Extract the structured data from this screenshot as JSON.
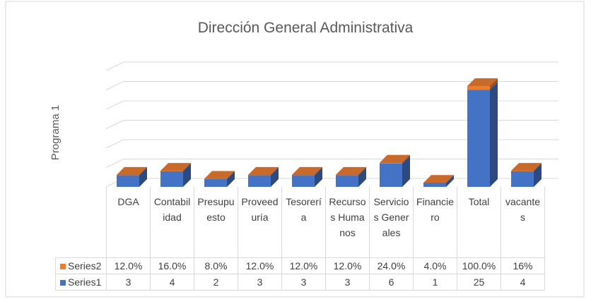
{
  "chart_data": {
    "type": "bar3d",
    "title": "Dirección General Administrativa",
    "y_label": "Programa 1",
    "categories": [
      "DGA",
      "Contabilidad",
      "Presupuesto",
      "Proveeduría",
      "Tesorería",
      "Recursos Humanos",
      "Servicios Generales",
      "Financiero",
      "Total",
      "vacantes"
    ],
    "series": [
      {
        "name": "Series1",
        "color": "#4472c4",
        "values": [
          3,
          4,
          2,
          3,
          3,
          3,
          6,
          1,
          25,
          4
        ]
      },
      {
        "name": "Series2",
        "color": "#ed7d31",
        "values": [
          0.12,
          0.16,
          0.08,
          0.12,
          0.12,
          0.12,
          0.24,
          0.04,
          1,
          0.16
        ],
        "value_labels": [
          "12.0%",
          "16.0%",
          "8.0%",
          "12.0%",
          "12.0%",
          "12.0%",
          "24.0%",
          "4.0%",
          "100.0%",
          "16%"
        ]
      }
    ],
    "ylim": [
      0,
      30
    ],
    "yticks": [
      0,
      5,
      10,
      15,
      20,
      25,
      30
    ],
    "grid": true,
    "stacked": true
  }
}
